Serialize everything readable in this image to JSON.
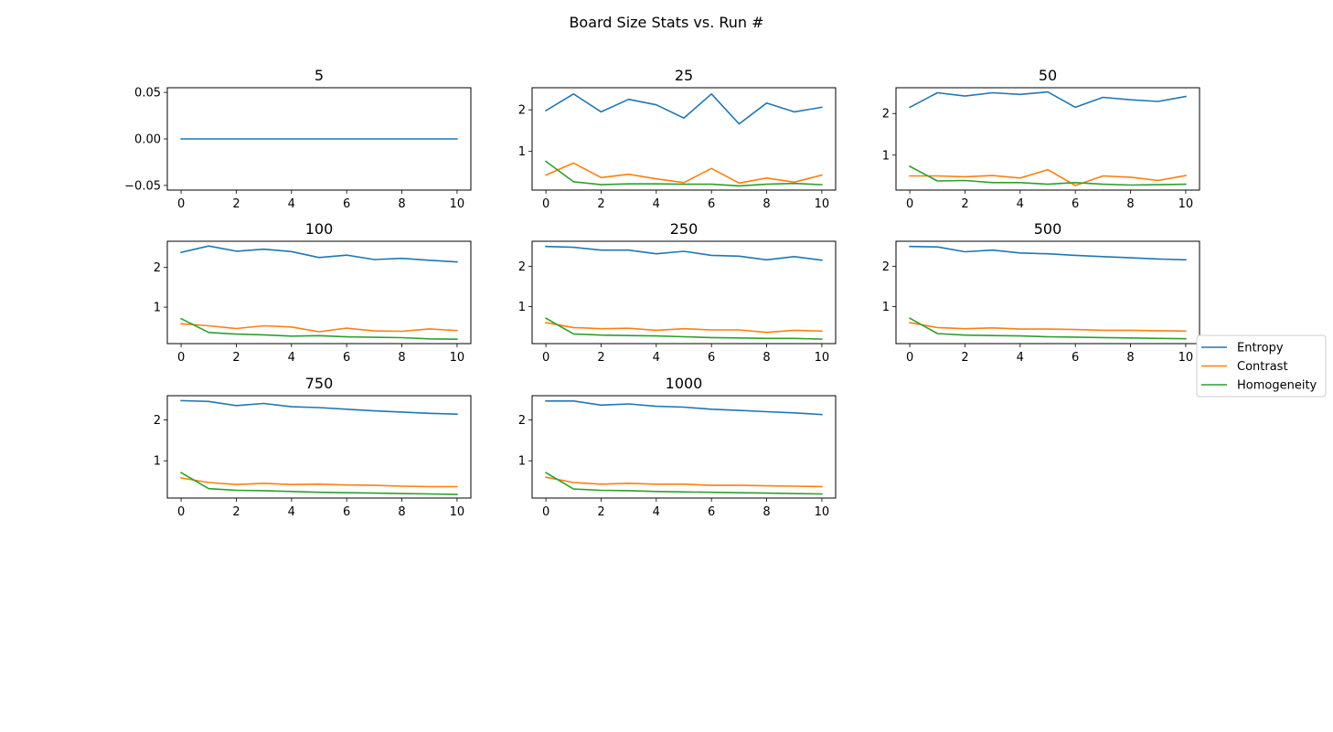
{
  "figure_title": "Board Size Stats vs. Run #",
  "legend": {
    "placement": "right",
    "entries": [
      {
        "label": "Entropy",
        "color": "#1f77b4"
      },
      {
        "label": "Contrast",
        "color": "#ff7f0e"
      },
      {
        "label": "Homogeneity",
        "color": "#2ca02c"
      }
    ]
  },
  "chart_data": [
    {
      "type": "line",
      "title": "5",
      "x": [
        0,
        1,
        2,
        3,
        4,
        5,
        6,
        7,
        8,
        9,
        10
      ],
      "xticks": [
        0,
        2,
        4,
        6,
        8,
        10
      ],
      "xlim": [
        -0.5,
        10.5
      ],
      "ylim": [
        -0.055,
        0.055
      ],
      "yticks": [
        -0.05,
        0.0,
        0.05
      ],
      "ytick_labels": [
        "−0.05",
        "0.00",
        "0.05"
      ],
      "series": [
        {
          "name": "Entropy",
          "values": [
            0,
            0,
            0,
            0,
            0,
            0,
            0,
            0,
            0,
            0,
            0
          ]
        }
      ]
    },
    {
      "type": "line",
      "title": "25",
      "x": [
        0,
        1,
        2,
        3,
        4,
        5,
        6,
        7,
        8,
        9,
        10
      ],
      "xticks": [
        0,
        2,
        4,
        6,
        8,
        10
      ],
      "xlim": [
        -0.5,
        10.5
      ],
      "ylim": [
        0.07,
        2.53
      ],
      "yticks": [
        1,
        2
      ],
      "ytick_labels": [
        "1",
        "2"
      ],
      "series": [
        {
          "name": "Entropy",
          "values": [
            1.98,
            2.38,
            1.95,
            2.25,
            2.12,
            1.8,
            2.38,
            1.66,
            2.16,
            1.95,
            2.06
          ]
        },
        {
          "name": "Contrast",
          "values": [
            0.43,
            0.72,
            0.37,
            0.45,
            0.34,
            0.25,
            0.59,
            0.24,
            0.36,
            0.26,
            0.43
          ]
        },
        {
          "name": "Homogeneity",
          "values": [
            0.76,
            0.27,
            0.2,
            0.22,
            0.22,
            0.21,
            0.21,
            0.17,
            0.21,
            0.23,
            0.2
          ]
        }
      ]
    },
    {
      "type": "line",
      "title": "50",
      "x": [
        0,
        1,
        2,
        3,
        4,
        5,
        6,
        7,
        8,
        9,
        10
      ],
      "xticks": [
        0,
        2,
        4,
        6,
        8,
        10
      ],
      "xlim": [
        -0.5,
        10.5
      ],
      "ylim": [
        0.16,
        2.62
      ],
      "yticks": [
        1,
        2
      ],
      "ytick_labels": [
        "1",
        "2"
      ],
      "series": [
        {
          "name": "Entropy",
          "values": [
            2.15,
            2.5,
            2.42,
            2.5,
            2.46,
            2.52,
            2.15,
            2.39,
            2.33,
            2.29,
            2.41
          ]
        },
        {
          "name": "Contrast",
          "values": [
            0.5,
            0.5,
            0.48,
            0.51,
            0.45,
            0.65,
            0.27,
            0.5,
            0.47,
            0.39,
            0.51
          ]
        },
        {
          "name": "Homogeneity",
          "values": [
            0.73,
            0.38,
            0.39,
            0.34,
            0.34,
            0.3,
            0.34,
            0.3,
            0.28,
            0.29,
            0.3
          ]
        }
      ]
    },
    {
      "type": "line",
      "title": "100",
      "x": [
        0,
        1,
        2,
        3,
        4,
        5,
        6,
        7,
        8,
        9,
        10
      ],
      "xticks": [
        0,
        2,
        4,
        6,
        8,
        10
      ],
      "xlim": [
        -0.5,
        10.5
      ],
      "ylim": [
        0.08,
        2.66
      ],
      "yticks": [
        1,
        2
      ],
      "ytick_labels": [
        "1",
        "2"
      ],
      "series": [
        {
          "name": "Entropy",
          "values": [
            2.38,
            2.54,
            2.41,
            2.46,
            2.4,
            2.25,
            2.31,
            2.2,
            2.23,
            2.18,
            2.14
          ]
        },
        {
          "name": "Contrast",
          "values": [
            0.58,
            0.53,
            0.46,
            0.53,
            0.5,
            0.38,
            0.47,
            0.4,
            0.39,
            0.45,
            0.41
          ]
        },
        {
          "name": "Homogeneity",
          "values": [
            0.71,
            0.36,
            0.32,
            0.3,
            0.27,
            0.28,
            0.25,
            0.24,
            0.23,
            0.2,
            0.19
          ]
        }
      ]
    },
    {
      "type": "line",
      "title": "250",
      "x": [
        0,
        1,
        2,
        3,
        4,
        5,
        6,
        7,
        8,
        9,
        10
      ],
      "xticks": [
        0,
        2,
        4,
        6,
        8,
        10
      ],
      "xlim": [
        -0.5,
        10.5
      ],
      "ylim": [
        0.08,
        2.62
      ],
      "yticks": [
        1,
        2
      ],
      "ytick_labels": [
        "1",
        "2"
      ],
      "series": [
        {
          "name": "Entropy",
          "values": [
            2.49,
            2.47,
            2.4,
            2.4,
            2.31,
            2.37,
            2.27,
            2.25,
            2.16,
            2.24,
            2.15
          ]
        },
        {
          "name": "Contrast",
          "values": [
            0.6,
            0.48,
            0.45,
            0.46,
            0.41,
            0.45,
            0.42,
            0.42,
            0.36,
            0.41,
            0.39
          ]
        },
        {
          "name": "Homogeneity",
          "values": [
            0.71,
            0.32,
            0.29,
            0.28,
            0.27,
            0.25,
            0.23,
            0.22,
            0.21,
            0.21,
            0.19
          ]
        }
      ]
    },
    {
      "type": "line",
      "title": "500",
      "x": [
        0,
        1,
        2,
        3,
        4,
        5,
        6,
        7,
        8,
        9,
        10
      ],
      "xticks": [
        0,
        2,
        4,
        6,
        8,
        10
      ],
      "xlim": [
        -0.5,
        10.5
      ],
      "ylim": [
        0.08,
        2.62
      ],
      "yticks": [
        1,
        2
      ],
      "ytick_labels": [
        "1",
        "2"
      ],
      "series": [
        {
          "name": "Entropy",
          "values": [
            2.49,
            2.48,
            2.36,
            2.4,
            2.33,
            2.31,
            2.27,
            2.24,
            2.21,
            2.18,
            2.16
          ]
        },
        {
          "name": "Contrast",
          "values": [
            0.6,
            0.48,
            0.45,
            0.47,
            0.44,
            0.44,
            0.43,
            0.41,
            0.41,
            0.4,
            0.39
          ]
        },
        {
          "name": "Homogeneity",
          "values": [
            0.71,
            0.33,
            0.29,
            0.28,
            0.27,
            0.25,
            0.24,
            0.23,
            0.22,
            0.21,
            0.2
          ]
        }
      ]
    },
    {
      "type": "line",
      "title": "750",
      "x": [
        0,
        1,
        2,
        3,
        4,
        5,
        6,
        7,
        8,
        9,
        10
      ],
      "xticks": [
        0,
        2,
        4,
        6,
        8,
        10
      ],
      "xlim": [
        -0.5,
        10.5
      ],
      "ylim": [
        0.09,
        2.59
      ],
      "yticks": [
        1,
        2
      ],
      "ytick_labels": [
        "1",
        "2"
      ],
      "series": [
        {
          "name": "Entropy",
          "values": [
            2.47,
            2.45,
            2.35,
            2.4,
            2.32,
            2.3,
            2.26,
            2.22,
            2.19,
            2.16,
            2.14
          ]
        },
        {
          "name": "Contrast",
          "values": [
            0.58,
            0.47,
            0.42,
            0.45,
            0.42,
            0.43,
            0.41,
            0.4,
            0.38,
            0.37,
            0.37
          ]
        },
        {
          "name": "Homogeneity",
          "values": [
            0.71,
            0.32,
            0.28,
            0.27,
            0.25,
            0.23,
            0.22,
            0.21,
            0.2,
            0.19,
            0.18
          ]
        }
      ]
    },
    {
      "type": "line",
      "title": "1000",
      "x": [
        0,
        1,
        2,
        3,
        4,
        5,
        6,
        7,
        8,
        9,
        10
      ],
      "xticks": [
        0,
        2,
        4,
        6,
        8,
        10
      ],
      "xlim": [
        -0.5,
        10.5
      ],
      "ylim": [
        0.09,
        2.59
      ],
      "yticks": [
        1,
        2
      ],
      "ytick_labels": [
        "1",
        "2"
      ],
      "series": [
        {
          "name": "Entropy",
          "values": [
            2.46,
            2.46,
            2.36,
            2.39,
            2.33,
            2.31,
            2.26,
            2.23,
            2.2,
            2.17,
            2.13
          ]
        },
        {
          "name": "Contrast",
          "values": [
            0.6,
            0.47,
            0.43,
            0.45,
            0.43,
            0.43,
            0.4,
            0.4,
            0.39,
            0.38,
            0.37
          ]
        },
        {
          "name": "Homogeneity",
          "values": [
            0.71,
            0.31,
            0.28,
            0.27,
            0.25,
            0.24,
            0.23,
            0.22,
            0.21,
            0.2,
            0.19
          ]
        }
      ]
    }
  ]
}
